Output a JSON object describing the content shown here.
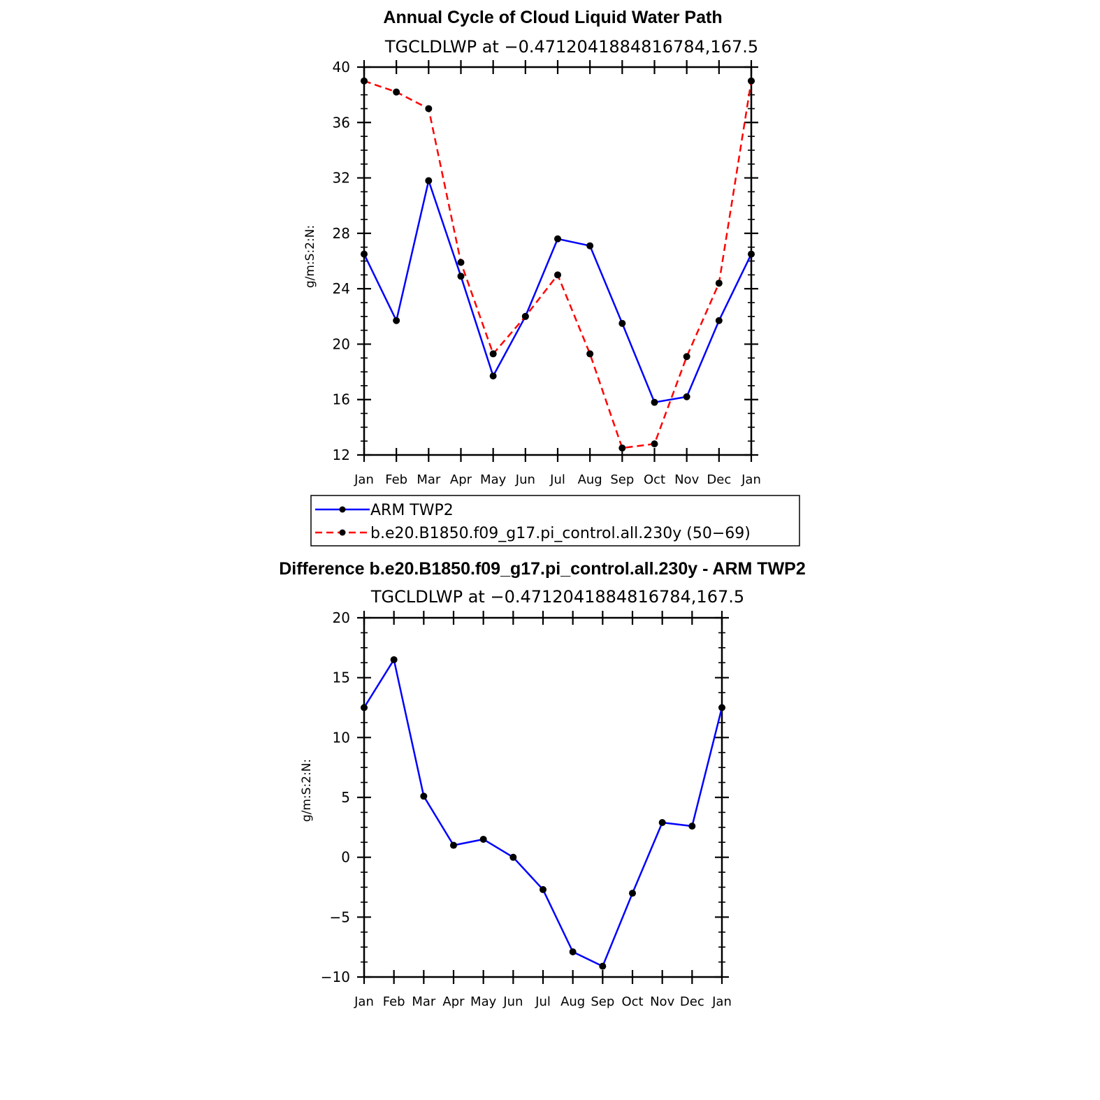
{
  "chart_data": [
    {
      "type": "line",
      "title": "Annual Cycle of Cloud Liquid Water Path",
      "subtitle": "TGCLDLWP at −0.4712041884816784,167.5",
      "xlabel": "",
      "ylabel": "g/m:S:2:N:",
      "categories": [
        "Jan",
        "Feb",
        "Mar",
        "Apr",
        "May",
        "Jun",
        "Jul",
        "Aug",
        "Sep",
        "Oct",
        "Nov",
        "Dec",
        "Jan"
      ],
      "ylim": [
        12,
        40
      ],
      "yticks": [
        12,
        16,
        20,
        24,
        28,
        32,
        36,
        40
      ],
      "grid": false,
      "legend_position": "bottom",
      "series": [
        {
          "name": "ARM TWP2",
          "color": "#0000ff",
          "dash": "solid",
          "values": [
            26.5,
            21.7,
            31.8,
            24.9,
            17.7,
            22.0,
            27.6,
            27.1,
            21.5,
            15.8,
            16.2,
            21.7,
            26.5
          ]
        },
        {
          "name": "b.e20.B1850.f09_g17.pi_control.all.230y (50−69)",
          "color": "#ff0000",
          "dash": "dashed",
          "values": [
            39.0,
            38.2,
            37.0,
            25.9,
            19.3,
            22.0,
            25.0,
            19.3,
            12.5,
            12.8,
            19.1,
            24.4,
            39.0
          ]
        }
      ]
    },
    {
      "type": "line",
      "title": "Difference b.e20.B1850.f09_g17.pi_control.all.230y - ARM TWP2",
      "subtitle": "TGCLDLWP at −0.4712041884816784,167.5",
      "xlabel": "",
      "ylabel": "g/m:S:2:N:",
      "categories": [
        "Jan",
        "Feb",
        "Mar",
        "Apr",
        "May",
        "Jun",
        "Jul",
        "Aug",
        "Sep",
        "Oct",
        "Nov",
        "Dec",
        "Jan"
      ],
      "ylim": [
        -10,
        20
      ],
      "yticks": [
        -10,
        -5,
        0,
        5,
        10,
        15,
        20
      ],
      "ytick_labels": [
        "−10",
        "−5",
        "0",
        "5",
        "10",
        "15",
        "20"
      ],
      "grid": false,
      "series": [
        {
          "color": "#0000ff",
          "dash": "solid",
          "values": [
            12.5,
            16.5,
            5.1,
            1.0,
            1.5,
            0.0,
            -2.7,
            -7.9,
            -9.1,
            -3.0,
            2.9,
            2.6,
            12.5
          ]
        }
      ]
    }
  ]
}
